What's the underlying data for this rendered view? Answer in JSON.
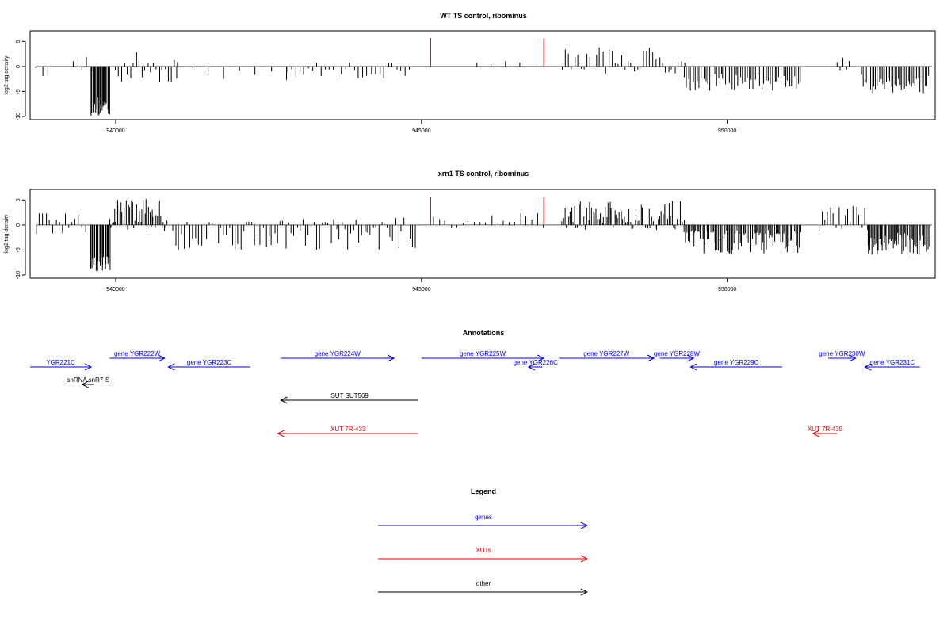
{
  "chart_data": [
    {
      "type": "bar",
      "title": "WT TS control, ribominus",
      "ylabel": "log2 tag density",
      "xlabel": "",
      "xlim": [
        938600,
        953400
      ],
      "ylim": [
        -10,
        6
      ],
      "x_ticks": [
        "940000",
        "945000",
        "950000"
      ],
      "y_ticks": [
        "-10",
        "-5",
        "0",
        "5"
      ],
      "grid": false,
      "markers": [
        {
          "x": 945150,
          "y": 5.7,
          "color": "#dd0000"
        },
        {
          "x": 947000,
          "y": 5.6,
          "color": "#dd0000"
        }
      ],
      "segments": [
        {
          "x0": 938700,
          "x1": 938900,
          "lo": -2,
          "hi": 0,
          "n": 3
        },
        {
          "x0": 939300,
          "x1": 939600,
          "lo": -1.5,
          "hi": 2.8,
          "n": 5
        },
        {
          "x0": 939600,
          "x1": 939900,
          "lo": -10,
          "hi": -6,
          "n": 26
        },
        {
          "x0": 940000,
          "x1": 941000,
          "lo": -3.5,
          "hi": 3,
          "n": 22
        },
        {
          "x0": 941000,
          "x1": 942800,
          "lo": -2.8,
          "hi": -0.3,
          "n": 8
        },
        {
          "x0": 942800,
          "x1": 944800,
          "lo": -2.8,
          "hi": 1,
          "n": 30
        },
        {
          "x0": 945900,
          "x1": 946600,
          "lo": 0.5,
          "hi": 1.2,
          "n": 4
        },
        {
          "x0": 947300,
          "x1": 949300,
          "lo": -1.5,
          "hi": 4,
          "n": 40
        },
        {
          "x0": 949300,
          "x1": 951200,
          "lo": -5,
          "hi": -1.5,
          "n": 55
        },
        {
          "x0": 951800,
          "x1": 952000,
          "lo": -2,
          "hi": 3,
          "n": 5
        },
        {
          "x0": 952200,
          "x1": 953300,
          "lo": -5.5,
          "hi": -1.5,
          "n": 40
        }
      ]
    },
    {
      "type": "bar",
      "title": "xrn1 TS control, ribominus",
      "ylabel": "log2 tag density",
      "xlabel": "",
      "xlim": [
        938600,
        953400
      ],
      "ylim": [
        -10,
        6
      ],
      "x_ticks": [
        "940000",
        "945000",
        "950000"
      ],
      "y_ticks": [
        "-10",
        "-5",
        "0",
        "5"
      ],
      "grid": false,
      "markers": [
        {
          "x": 945150,
          "y": 5.7,
          "color": "#dd0000"
        },
        {
          "x": 947000,
          "y": 5.6,
          "color": "#dd0000"
        }
      ],
      "segments": [
        {
          "x0": 938700,
          "x1": 939500,
          "lo": -2.5,
          "hi": 2.5,
          "n": 16
        },
        {
          "x0": 939600,
          "x1": 939900,
          "lo": -10,
          "hi": -6,
          "n": 26
        },
        {
          "x0": 939900,
          "x1": 940800,
          "lo": -1.5,
          "hi": 5.5,
          "n": 45
        },
        {
          "x0": 940800,
          "x1": 944900,
          "lo": -5,
          "hi": 1.5,
          "n": 90
        },
        {
          "x0": 945200,
          "x1": 947000,
          "lo": -0.8,
          "hi": 2.5,
          "n": 20
        },
        {
          "x0": 947300,
          "x1": 949300,
          "lo": -1,
          "hi": 4.8,
          "n": 80
        },
        {
          "x0": 949300,
          "x1": 951200,
          "lo": -5.8,
          "hi": -1,
          "n": 90
        },
        {
          "x0": 951500,
          "x1": 952300,
          "lo": -1.5,
          "hi": 3.8,
          "n": 18
        },
        {
          "x0": 952300,
          "x1": 953300,
          "lo": -6,
          "hi": -1.5,
          "n": 60
        }
      ]
    }
  ],
  "annotations": {
    "title": "Annotations",
    "items": [
      {
        "label": "YGR221C",
        "x0": 938600,
        "x1": 939600,
        "dir": "right",
        "row": 1,
        "color": "#0000ff"
      },
      {
        "label": "gene YGR222W",
        "x0": 939900,
        "x1": 940800,
        "dir": "right",
        "row": 0,
        "color": "#0000ff"
      },
      {
        "label": "gene YGR223C",
        "x0": 940860,
        "x1": 942200,
        "dir": "left",
        "row": 1,
        "color": "#0000ff"
      },
      {
        "label": "snRNA snR7-S",
        "x0": 939450,
        "x1": 939650,
        "dir": "left",
        "row": 2,
        "color": "#000000"
      },
      {
        "label": "gene YGR224W",
        "x0": 942700,
        "x1": 944550,
        "dir": "right",
        "row": 0,
        "color": "#0000ff"
      },
      {
        "label": "gene YGR225W",
        "x0": 945000,
        "x1": 947000,
        "dir": "right",
        "row": 0,
        "color": "#0000ff"
      },
      {
        "label": "gene YGR226C",
        "x0": 946750,
        "x1": 946980,
        "dir": "left",
        "row": 1,
        "color": "#0000ff"
      },
      {
        "label": "gene YGR227W",
        "x0": 947250,
        "x1": 948800,
        "dir": "right",
        "row": 0,
        "color": "#0000ff"
      },
      {
        "label": "gene YGR228W",
        "x0": 948900,
        "x1": 949450,
        "dir": "right",
        "row": 0,
        "color": "#0000ff"
      },
      {
        "label": "gene YGR229C",
        "x0": 949400,
        "x1": 950900,
        "dir": "left",
        "row": 1,
        "color": "#0000ff"
      },
      {
        "label": "gene YGR230W",
        "x0": 951650,
        "x1": 952100,
        "dir": "right",
        "row": 0,
        "color": "#0000ff"
      },
      {
        "label": "gene YGR231C",
        "x0": 952250,
        "x1": 953150,
        "dir": "left",
        "row": 1,
        "color": "#0000ff"
      },
      {
        "label": "SUT SUT569",
        "x0": 942700,
        "x1": 944950,
        "dir": "left",
        "row": 3,
        "color": "#000000"
      },
      {
        "label": "XUT 7R-433",
        "x0": 942650,
        "x1": 944950,
        "dir": "left",
        "row": 4,
        "color": "#dd0000"
      },
      {
        "label": "XUT 7R-435",
        "x0": 951400,
        "x1": 951800,
        "dir": "left",
        "row": 4,
        "color": "#dd0000"
      }
    ]
  },
  "legend": {
    "title": "Legend",
    "entries": [
      {
        "label": "genes",
        "color": "#0000ff"
      },
      {
        "label": "XUTs",
        "color": "#dd0000"
      },
      {
        "label": "other",
        "color": "#000000"
      }
    ]
  }
}
